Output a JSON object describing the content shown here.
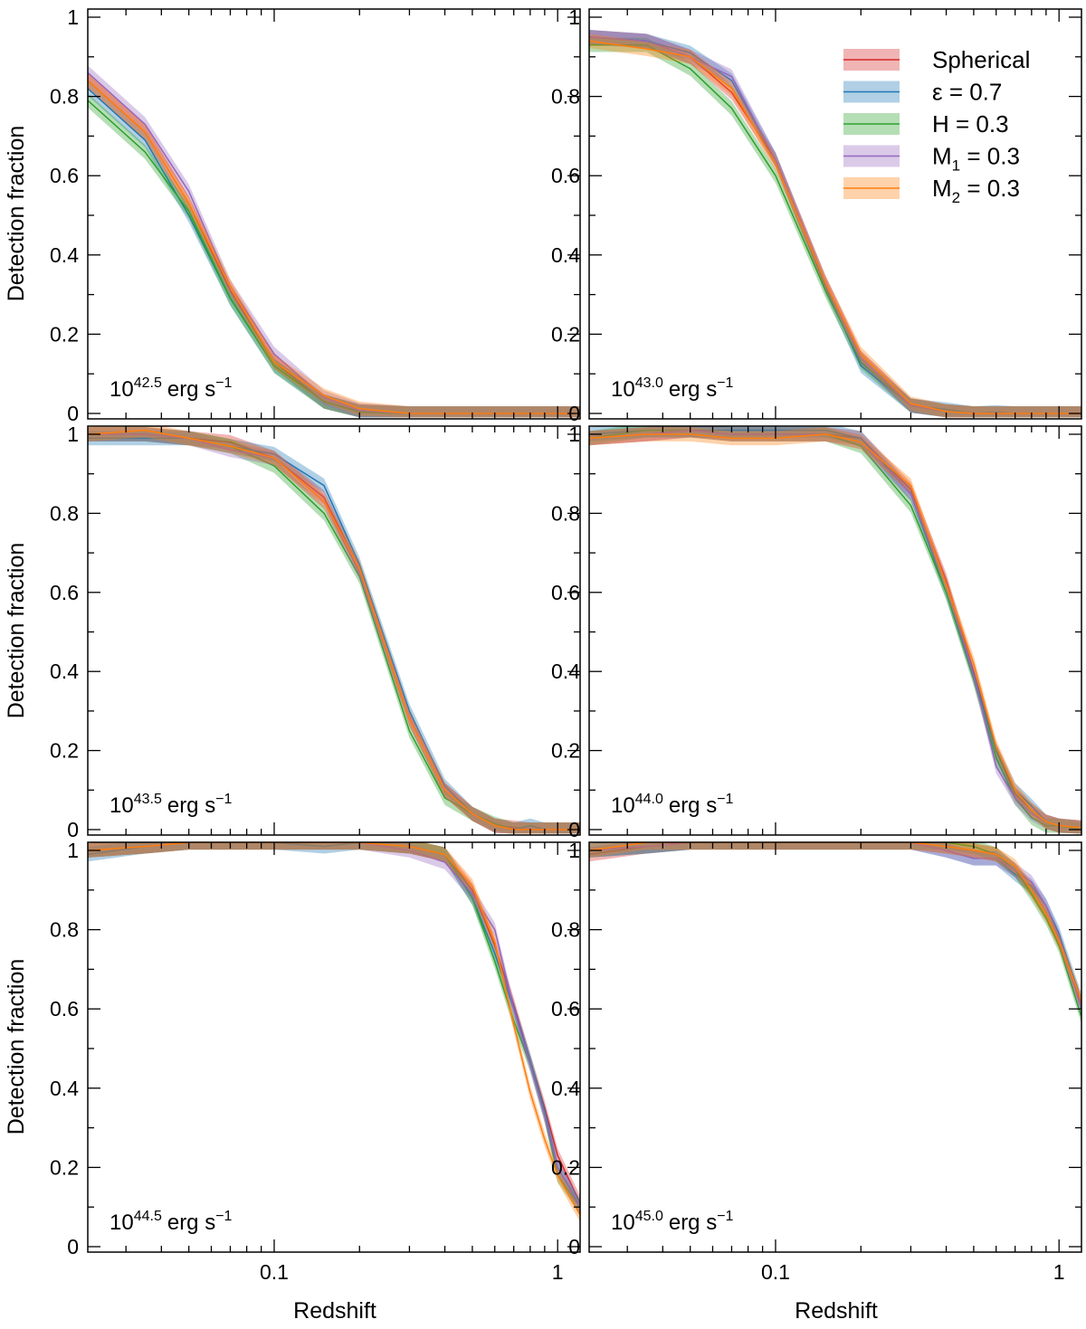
{
  "figure": {
    "xlabel": "Redshift",
    "ylabel": "Detection fraction"
  },
  "legend": {
    "placement": "top-right of top-right panel",
    "entries": [
      {
        "key": "sph",
        "label": "Spherical",
        "main": "Spherical",
        "sub": "",
        "tail": "",
        "color": "#d62728"
      },
      {
        "key": "eps",
        "label": "ε = 0.7",
        "main": "ε = 0.7",
        "sub": "",
        "tail": "",
        "color": "#1f77b4"
      },
      {
        "key": "h",
        "label": "H = 0.3",
        "main": "H = 0.3",
        "sub": "",
        "tail": "",
        "color": "#2ca02c"
      },
      {
        "key": "m1",
        "label": "M1 = 0.3",
        "main": "M",
        "sub": "1",
        "tail": " = 0.3",
        "color": "#9467bd"
      },
      {
        "key": "m2",
        "label": "M2 = 0.3",
        "main": "M",
        "sub": "2",
        "tail": " = 0.3",
        "color": "#ff7f0e"
      }
    ]
  },
  "chart_data": [
    {
      "type": "line",
      "panel_label": "10^42.5 erg s^-1",
      "label_base": "10",
      "label_exp": "42.5",
      "label_unit": "erg s",
      "label_unit_exp": "−1",
      "xscale": "log",
      "xlim": [
        0.022,
        1.2
      ],
      "ylim": [
        0,
        1
      ],
      "xticks": [
        0.1,
        1
      ],
      "yticks": [
        0,
        0.2,
        0.4,
        0.6,
        0.8,
        1
      ],
      "x": [
        0.022,
        0.035,
        0.05,
        0.07,
        0.1,
        0.15,
        0.2,
        0.3,
        0.4,
        0.5,
        0.6,
        0.7,
        0.8,
        0.9,
        1.0,
        1.2
      ],
      "series": [
        {
          "name": "Spherical",
          "values": [
            0.84,
            0.71,
            0.53,
            0.31,
            0.13,
            0.03,
            0.005,
            0,
            0,
            0,
            0,
            0,
            0,
            0,
            0,
            0
          ]
        },
        {
          "name": "ε = 0.7",
          "values": [
            0.82,
            0.69,
            0.5,
            0.29,
            0.12,
            0.03,
            0.005,
            0,
            0,
            0,
            0,
            0,
            0,
            0,
            0,
            0
          ]
        },
        {
          "name": "H = 0.3",
          "values": [
            0.79,
            0.66,
            0.51,
            0.29,
            0.12,
            0.03,
            0.003,
            0,
            0,
            0,
            0,
            0,
            0,
            0,
            0,
            0
          ]
        },
        {
          "name": "M1 = 0.3",
          "values": [
            0.86,
            0.73,
            0.56,
            0.32,
            0.15,
            0.04,
            0.008,
            0,
            0,
            0,
            0,
            0,
            0,
            0,
            0,
            0
          ]
        },
        {
          "name": "M2 = 0.3",
          "values": [
            0.84,
            0.71,
            0.53,
            0.32,
            0.13,
            0.045,
            0.012,
            0,
            0,
            0,
            0,
            0,
            0,
            0,
            0,
            0
          ]
        }
      ]
    },
    {
      "type": "line",
      "panel_label": "10^43.0 erg s^-1",
      "label_base": "10",
      "label_exp": "43.0",
      "label_unit": "erg s",
      "label_unit_exp": "−1",
      "xscale": "log",
      "xlim": [
        0.022,
        1.2
      ],
      "ylim": [
        0,
        1
      ],
      "xticks": [
        0.1,
        1
      ],
      "yticks": [
        0,
        0.2,
        0.4,
        0.6,
        0.8,
        1
      ],
      "x": [
        0.022,
        0.035,
        0.05,
        0.07,
        0.1,
        0.15,
        0.2,
        0.3,
        0.4,
        0.5,
        0.6,
        0.7,
        0.8,
        0.9,
        1.0,
        1.2
      ],
      "series": [
        {
          "name": "Spherical",
          "values": [
            0.95,
            0.94,
            0.9,
            0.81,
            0.64,
            0.33,
            0.14,
            0.02,
            0.005,
            0,
            0,
            0,
            0,
            0,
            0,
            0
          ]
        },
        {
          "name": "ε = 0.7",
          "values": [
            0.95,
            0.94,
            0.91,
            0.84,
            0.64,
            0.32,
            0.12,
            0.02,
            0.01,
            0,
            0.003,
            0,
            0,
            0,
            0,
            0
          ]
        },
        {
          "name": "H = 0.3",
          "values": [
            0.93,
            0.93,
            0.87,
            0.77,
            0.6,
            0.31,
            0.13,
            0.02,
            0.005,
            0,
            0,
            0,
            0,
            0,
            0,
            0
          ]
        },
        {
          "name": "M1 = 0.3",
          "values": [
            0.95,
            0.94,
            0.9,
            0.85,
            0.64,
            0.33,
            0.14,
            0.02,
            0.005,
            0,
            0,
            0,
            0,
            0,
            0,
            0
          ]
        },
        {
          "name": "M2 = 0.3",
          "values": [
            0.94,
            0.92,
            0.9,
            0.82,
            0.63,
            0.33,
            0.15,
            0.025,
            0.005,
            0,
            0,
            0,
            0,
            0,
            0,
            0
          ]
        }
      ]
    },
    {
      "type": "line",
      "panel_label": "10^43.5 erg s^-1",
      "label_base": "10",
      "label_exp": "43.5",
      "label_unit": "erg s",
      "label_unit_exp": "−1",
      "xscale": "log",
      "xlim": [
        0.022,
        1.2
      ],
      "ylim": [
        0,
        1
      ],
      "xticks": [
        0.1,
        1
      ],
      "yticks": [
        0,
        0.2,
        0.4,
        0.6,
        0.8,
        1
      ],
      "x": [
        0.022,
        0.035,
        0.05,
        0.07,
        0.1,
        0.15,
        0.2,
        0.3,
        0.4,
        0.5,
        0.6,
        0.7,
        0.8,
        0.9,
        1.0,
        1.2
      ],
      "series": [
        {
          "name": "Spherical",
          "values": [
            1.0,
            1.0,
            0.99,
            0.98,
            0.94,
            0.84,
            0.66,
            0.28,
            0.1,
            0.04,
            0.01,
            0.005,
            0,
            0,
            0,
            0
          ]
        },
        {
          "name": "ε = 0.7",
          "values": [
            0.99,
            0.99,
            0.99,
            0.97,
            0.95,
            0.87,
            0.67,
            0.3,
            0.11,
            0.04,
            0.01,
            0,
            0.01,
            0,
            0,
            0
          ]
        },
        {
          "name": "H = 0.3",
          "values": [
            1.0,
            1.0,
            0.99,
            0.97,
            0.92,
            0.8,
            0.64,
            0.25,
            0.08,
            0.04,
            0.015,
            0,
            0,
            0,
            0,
            0
          ]
        },
        {
          "name": "M1 = 0.3",
          "values": [
            1.0,
            1.0,
            0.99,
            0.96,
            0.94,
            0.83,
            0.65,
            0.28,
            0.1,
            0.04,
            0.01,
            0,
            0,
            0,
            0,
            0
          ]
        },
        {
          "name": "M2 = 0.3",
          "values": [
            1.0,
            1.01,
            0.99,
            0.97,
            0.94,
            0.83,
            0.66,
            0.28,
            0.1,
            0.04,
            0.01,
            0,
            0,
            0,
            0,
            0
          ]
        }
      ]
    },
    {
      "type": "line",
      "panel_label": "10^44.0 erg s^-1",
      "label_base": "10",
      "label_exp": "44.0",
      "label_unit": "erg s",
      "label_unit_exp": "−1",
      "xscale": "log",
      "xlim": [
        0.022,
        1.2
      ],
      "ylim": [
        0,
        1
      ],
      "xticks": [
        0.1,
        1
      ],
      "yticks": [
        0,
        0.2,
        0.4,
        0.6,
        0.8,
        1
      ],
      "x": [
        0.022,
        0.035,
        0.05,
        0.07,
        0.1,
        0.15,
        0.2,
        0.3,
        0.4,
        0.5,
        0.6,
        0.7,
        0.8,
        0.9,
        1.0,
        1.2
      ],
      "series": [
        {
          "name": "Spherical",
          "values": [
            0.99,
            1.0,
            1.01,
            1.0,
            1.0,
            1.0,
            0.99,
            0.86,
            0.63,
            0.4,
            0.2,
            0.09,
            0.05,
            0.02,
            0.01,
            0.005
          ]
        },
        {
          "name": "ε = 0.7",
          "values": [
            1.0,
            1.01,
            1.01,
            1.01,
            1.01,
            1.01,
            0.99,
            0.85,
            0.6,
            0.39,
            0.2,
            0.1,
            0.06,
            0.02,
            0.01,
            0.005
          ]
        },
        {
          "name": "H = 0.3",
          "values": [
            0.99,
            1.01,
            1.01,
            1.0,
            1.0,
            1.0,
            0.97,
            0.82,
            0.6,
            0.38,
            0.18,
            0.08,
            0.03,
            0.01,
            0.01,
            0
          ]
        },
        {
          "name": "M1 = 0.3",
          "values": [
            0.99,
            1.0,
            1.01,
            1.0,
            1.0,
            1.0,
            0.98,
            0.85,
            0.62,
            0.39,
            0.16,
            0.08,
            0.04,
            0.02,
            0.01,
            0.005
          ]
        },
        {
          "name": "M2 = 0.3",
          "values": [
            0.99,
            1.0,
            1.0,
            0.99,
            0.99,
            1.0,
            0.98,
            0.87,
            0.62,
            0.42,
            0.21,
            0.1,
            0.05,
            0.02,
            0.01,
            0.005
          ]
        }
      ]
    },
    {
      "type": "line",
      "panel_label": "10^44.5 erg s^-1",
      "label_base": "10",
      "label_exp": "44.5",
      "label_unit": "erg s",
      "label_unit_exp": "−1",
      "xscale": "log",
      "xlim": [
        0.022,
        1.2
      ],
      "ylim": [
        0,
        1
      ],
      "xticks": [
        0.1,
        1
      ],
      "yticks": [
        0,
        0.2,
        0.4,
        0.6,
        0.8,
        1
      ],
      "x": [
        0.022,
        0.035,
        0.05,
        0.07,
        0.1,
        0.15,
        0.2,
        0.3,
        0.4,
        0.5,
        0.6,
        0.7,
        0.8,
        0.9,
        1.0,
        1.2
      ],
      "series": [
        {
          "name": "Spherical",
          "values": [
            1.0,
            1.01,
            1.02,
            1.02,
            1.02,
            1.02,
            1.02,
            1.01,
            0.99,
            0.9,
            0.76,
            0.61,
            0.47,
            0.35,
            0.23,
            0.11
          ]
        },
        {
          "name": "ε = 0.7",
          "values": [
            0.99,
            1.01,
            1.02,
            1.02,
            1.02,
            1.01,
            1.02,
            1.01,
            0.99,
            0.88,
            0.74,
            0.6,
            0.47,
            0.34,
            0.2,
            0.1
          ]
        },
        {
          "name": "H = 0.3",
          "values": [
            1.0,
            1.01,
            1.02,
            1.02,
            1.02,
            1.02,
            1.02,
            1.01,
            0.99,
            0.88,
            0.72,
            0.57,
            0.46,
            0.33,
            0.18,
            0.1
          ]
        },
        {
          "name": "M1 = 0.3",
          "values": [
            1.0,
            1.01,
            1.02,
            1.02,
            1.02,
            1.02,
            1.02,
            1.0,
            0.97,
            0.89,
            0.8,
            0.6,
            0.46,
            0.33,
            0.2,
            0.1
          ]
        },
        {
          "name": "M2 = 0.3",
          "values": [
            1.0,
            1.01,
            1.02,
            1.02,
            1.02,
            1.02,
            1.02,
            1.01,
            0.99,
            0.91,
            0.77,
            0.56,
            0.39,
            0.27,
            0.18,
            0.08
          ]
        }
      ]
    },
    {
      "type": "line",
      "panel_label": "10^45.0 erg s^-1",
      "label_base": "10",
      "label_exp": "45.0",
      "label_unit": "erg s",
      "label_unit_exp": "−1",
      "xscale": "log",
      "xlim": [
        0.022,
        1.2
      ],
      "ylim": [
        0,
        1
      ],
      "xticks": [
        0.1,
        1
      ],
      "yticks": [
        0,
        0.2,
        0.4,
        0.6,
        0.8,
        1
      ],
      "x": [
        0.022,
        0.035,
        0.05,
        0.07,
        0.1,
        0.15,
        0.2,
        0.3,
        0.4,
        0.5,
        0.6,
        0.7,
        0.8,
        0.9,
        1.0,
        1.2
      ],
      "series": [
        {
          "name": "Spherical",
          "values": [
            0.99,
            1.01,
            1.02,
            1.02,
            1.02,
            1.02,
            1.02,
            1.02,
            1.01,
            1.0,
            0.99,
            0.95,
            0.9,
            0.84,
            0.77,
            0.61
          ]
        },
        {
          "name": "ε = 0.7",
          "values": [
            1.0,
            1.01,
            1.02,
            1.02,
            1.02,
            1.02,
            1.02,
            1.02,
            1.0,
            0.98,
            0.98,
            0.94,
            0.91,
            0.86,
            0.79,
            0.62
          ]
        },
        {
          "name": "H = 0.3",
          "values": [
            1.0,
            1.01,
            1.02,
            1.02,
            1.02,
            1.02,
            1.02,
            1.02,
            1.02,
            1.01,
            0.99,
            0.95,
            0.89,
            0.83,
            0.76,
            0.58
          ]
        },
        {
          "name": "M1 = 0.3",
          "values": [
            1.0,
            1.01,
            1.02,
            1.02,
            1.02,
            1.02,
            1.02,
            1.02,
            1.0,
            0.98,
            0.98,
            0.95,
            0.92,
            0.86,
            0.78,
            0.6
          ]
        },
        {
          "name": "M2 = 0.3",
          "values": [
            1.0,
            1.02,
            1.02,
            1.02,
            1.02,
            1.02,
            1.02,
            1.02,
            1.01,
            1.0,
            0.99,
            0.96,
            0.9,
            0.84,
            0.77,
            0.62
          ]
        }
      ]
    }
  ]
}
